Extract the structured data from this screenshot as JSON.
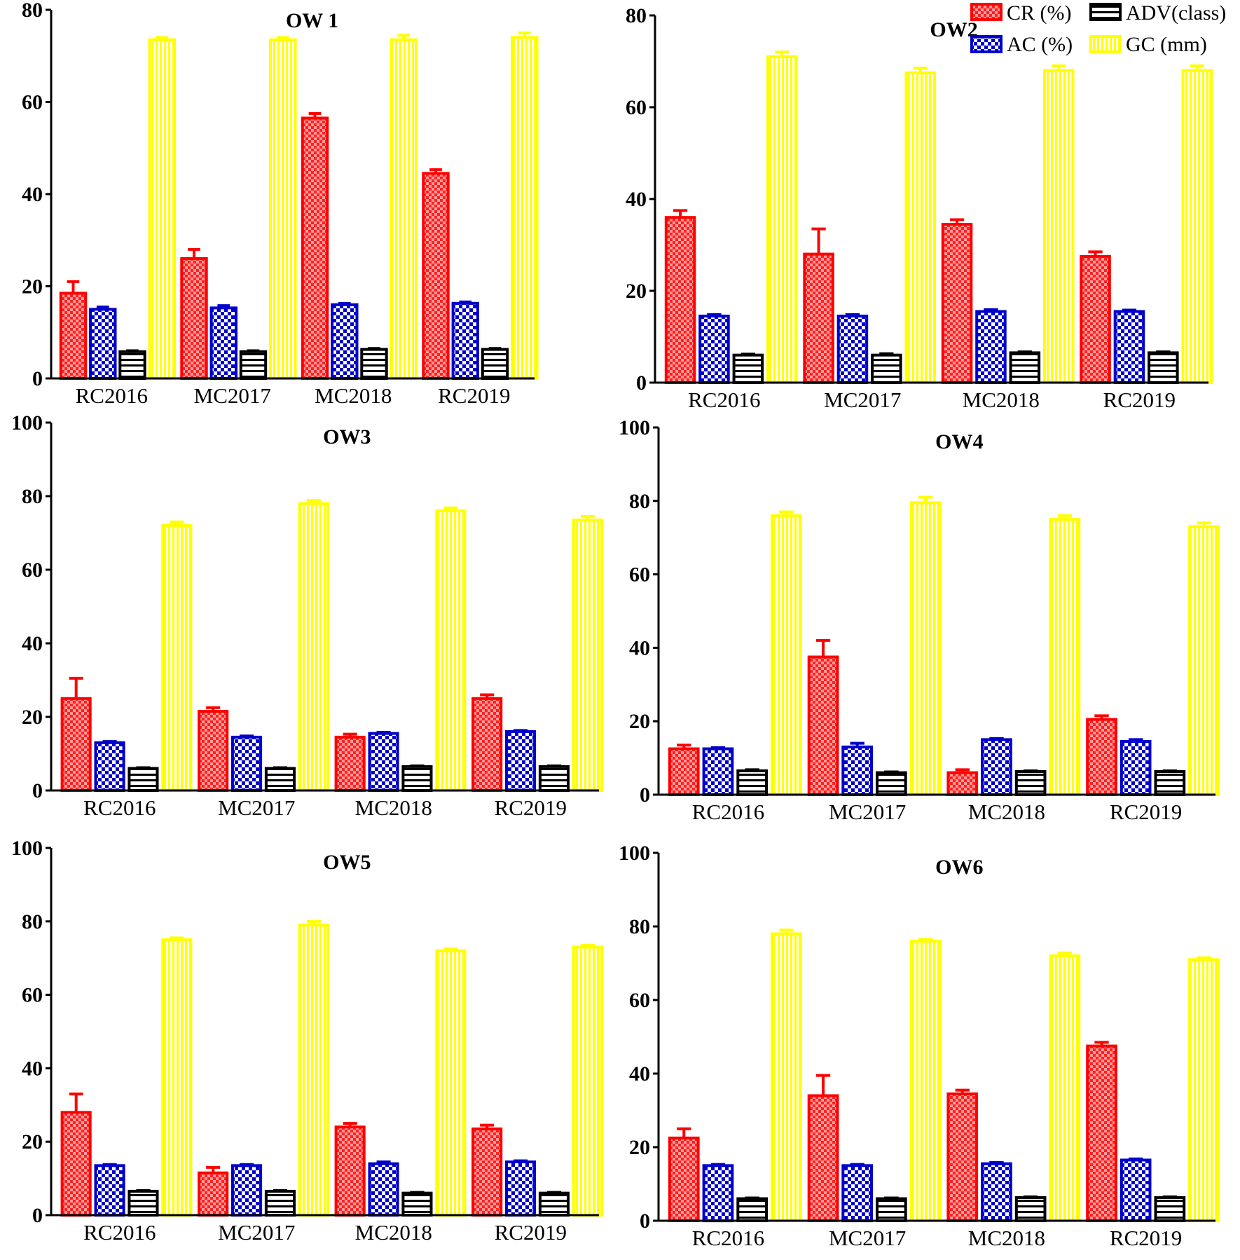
{
  "legend": [
    {
      "key": "cr",
      "label": "CR (%)",
      "color": "#ff0000",
      "pattern": "check-red"
    },
    {
      "key": "ac",
      "label": "AC (%)",
      "color": "#0000cc",
      "pattern": "check-blue"
    },
    {
      "key": "adv",
      "label": "ADV(class)",
      "color": "#000000",
      "pattern": "hstripe"
    },
    {
      "key": "gc",
      "label": "GC (mm)",
      "color": "#ffff00",
      "pattern": "vstripe"
    }
  ],
  "chart_data": [
    {
      "type": "bar",
      "title": "OW 1",
      "categories": [
        "RC2016",
        "MC2017",
        "MC2018",
        "RC2019"
      ],
      "ylim": [
        0,
        80
      ],
      "yticks": [
        0,
        20,
        40,
        60,
        80
      ],
      "series": [
        {
          "name": "CR (%)",
          "values": [
            18.5,
            26,
            56.5,
            44.5
          ],
          "errors": [
            2.5,
            2,
            1,
            0.8
          ]
        },
        {
          "name": "AC (%)",
          "values": [
            15,
            15.3,
            16,
            16.3
          ],
          "errors": [
            0.5,
            0.5,
            0.3,
            0.3
          ]
        },
        {
          "name": "ADV(class)",
          "values": [
            5.8,
            5.8,
            6.3,
            6.3
          ],
          "errors": [
            0.2,
            0.2,
            0.2,
            0.2
          ]
        },
        {
          "name": "GC (mm)",
          "values": [
            73.5,
            73.5,
            73.5,
            74
          ],
          "errors": [
            0.5,
            0.5,
            1,
            1
          ]
        }
      ]
    },
    {
      "type": "bar",
      "title": "OW2",
      "categories": [
        "RC2016",
        "MC2017",
        "MC2018",
        "RC2019"
      ],
      "ylim": [
        0,
        80
      ],
      "yticks": [
        0,
        20,
        40,
        60,
        80
      ],
      "series": [
        {
          "name": "CR (%)",
          "values": [
            36,
            28,
            34.5,
            27.5
          ],
          "errors": [
            1.5,
            5.5,
            1,
            1
          ]
        },
        {
          "name": "AC (%)",
          "values": [
            14.5,
            14.5,
            15.5,
            15.5
          ],
          "errors": [
            0.3,
            0.3,
            0.4,
            0.3
          ]
        },
        {
          "name": "ADV(class)",
          "values": [
            6,
            6,
            6.5,
            6.5
          ],
          "errors": [
            0.2,
            0.3,
            0.2,
            0.2
          ]
        },
        {
          "name": "GC (mm)",
          "values": [
            71,
            67.5,
            68,
            68
          ],
          "errors": [
            1,
            1,
            1,
            1
          ]
        }
      ]
    },
    {
      "type": "bar",
      "title": "OW3",
      "categories": [
        "RC2016",
        "MC2017",
        "MC2018",
        "RC2019"
      ],
      "ylim": [
        0,
        100
      ],
      "yticks": [
        0,
        20,
        40,
        60,
        80,
        100
      ],
      "series": [
        {
          "name": "CR (%)",
          "values": [
            25,
            21.5,
            14.5,
            25
          ],
          "errors": [
            5.5,
            1,
            0.8,
            1
          ]
        },
        {
          "name": "AC (%)",
          "values": [
            13,
            14.5,
            15.5,
            16
          ],
          "errors": [
            0.3,
            0.3,
            0.3,
            0.3
          ]
        },
        {
          "name": "ADV(class)",
          "values": [
            6,
            6,
            6.5,
            6.5
          ],
          "errors": [
            0.2,
            0.2,
            0.2,
            0.2
          ]
        },
        {
          "name": "GC (mm)",
          "values": [
            72,
            78,
            76,
            73.5
          ],
          "errors": [
            1,
            0.8,
            0.8,
            1
          ]
        }
      ]
    },
    {
      "type": "bar",
      "title": "OW4",
      "categories": [
        "RC2016",
        "MC2017",
        "MC2018",
        "RC2019"
      ],
      "ylim": [
        0,
        100
      ],
      "yticks": [
        0,
        20,
        40,
        60,
        80,
        100
      ],
      "series": [
        {
          "name": "CR (%)",
          "values": [
            12.5,
            37.5,
            6,
            20.5
          ],
          "errors": [
            1,
            4.5,
            0.8,
            1
          ]
        },
        {
          "name": "AC (%)",
          "values": [
            12.5,
            13,
            15,
            14.5
          ],
          "errors": [
            0.3,
            1,
            0.3,
            0.5
          ]
        },
        {
          "name": "ADV(class)",
          "values": [
            6.5,
            6,
            6.3,
            6.3
          ],
          "errors": [
            0.3,
            0.2,
            0.2,
            0.2
          ]
        },
        {
          "name": "GC (mm)",
          "values": [
            76,
            79.5,
            75,
            73
          ],
          "errors": [
            1,
            1.5,
            1,
            1
          ]
        }
      ]
    },
    {
      "type": "bar",
      "title": "OW5",
      "categories": [
        "RC2016",
        "MC2017",
        "MC2018",
        "RC2019"
      ],
      "ylim": [
        0,
        100
      ],
      "yticks": [
        0,
        20,
        40,
        60,
        80,
        100
      ],
      "series": [
        {
          "name": "CR (%)",
          "values": [
            28,
            11.5,
            24,
            23.5
          ],
          "errors": [
            5,
            1.5,
            1,
            1
          ]
        },
        {
          "name": "AC (%)",
          "values": [
            13.5,
            13.5,
            14,
            14.5
          ],
          "errors": [
            0.3,
            0.3,
            0.5,
            0.3
          ]
        },
        {
          "name": "ADV(class)",
          "values": [
            6.5,
            6.5,
            6,
            6
          ],
          "errors": [
            0.2,
            0.2,
            0.2,
            0.2
          ]
        },
        {
          "name": "GC (mm)",
          "values": [
            75,
            79,
            72,
            73
          ],
          "errors": [
            0.5,
            1,
            0.5,
            0.5
          ]
        }
      ]
    },
    {
      "type": "bar",
      "title": "OW6",
      "categories": [
        "RC2016",
        "MC2017",
        "MC2018",
        "RC2019"
      ],
      "ylim": [
        0,
        100
      ],
      "yticks": [
        0,
        20,
        40,
        60,
        80,
        100
      ],
      "series": [
        {
          "name": "CR (%)",
          "values": [
            22.5,
            34,
            34.5,
            47.5
          ],
          "errors": [
            2.5,
            5.5,
            1,
            1
          ]
        },
        {
          "name": "AC (%)",
          "values": [
            15,
            15,
            15.5,
            16.5
          ],
          "errors": [
            0.3,
            0.3,
            0.3,
            0.3
          ]
        },
        {
          "name": "ADV(class)",
          "values": [
            6,
            6,
            6.3,
            6.3
          ],
          "errors": [
            0.2,
            0.2,
            0.2,
            0.2
          ]
        },
        {
          "name": "GC (mm)",
          "values": [
            78,
            76,
            72,
            71
          ],
          "errors": [
            1,
            0.5,
            0.8,
            0.5
          ]
        }
      ]
    }
  ]
}
